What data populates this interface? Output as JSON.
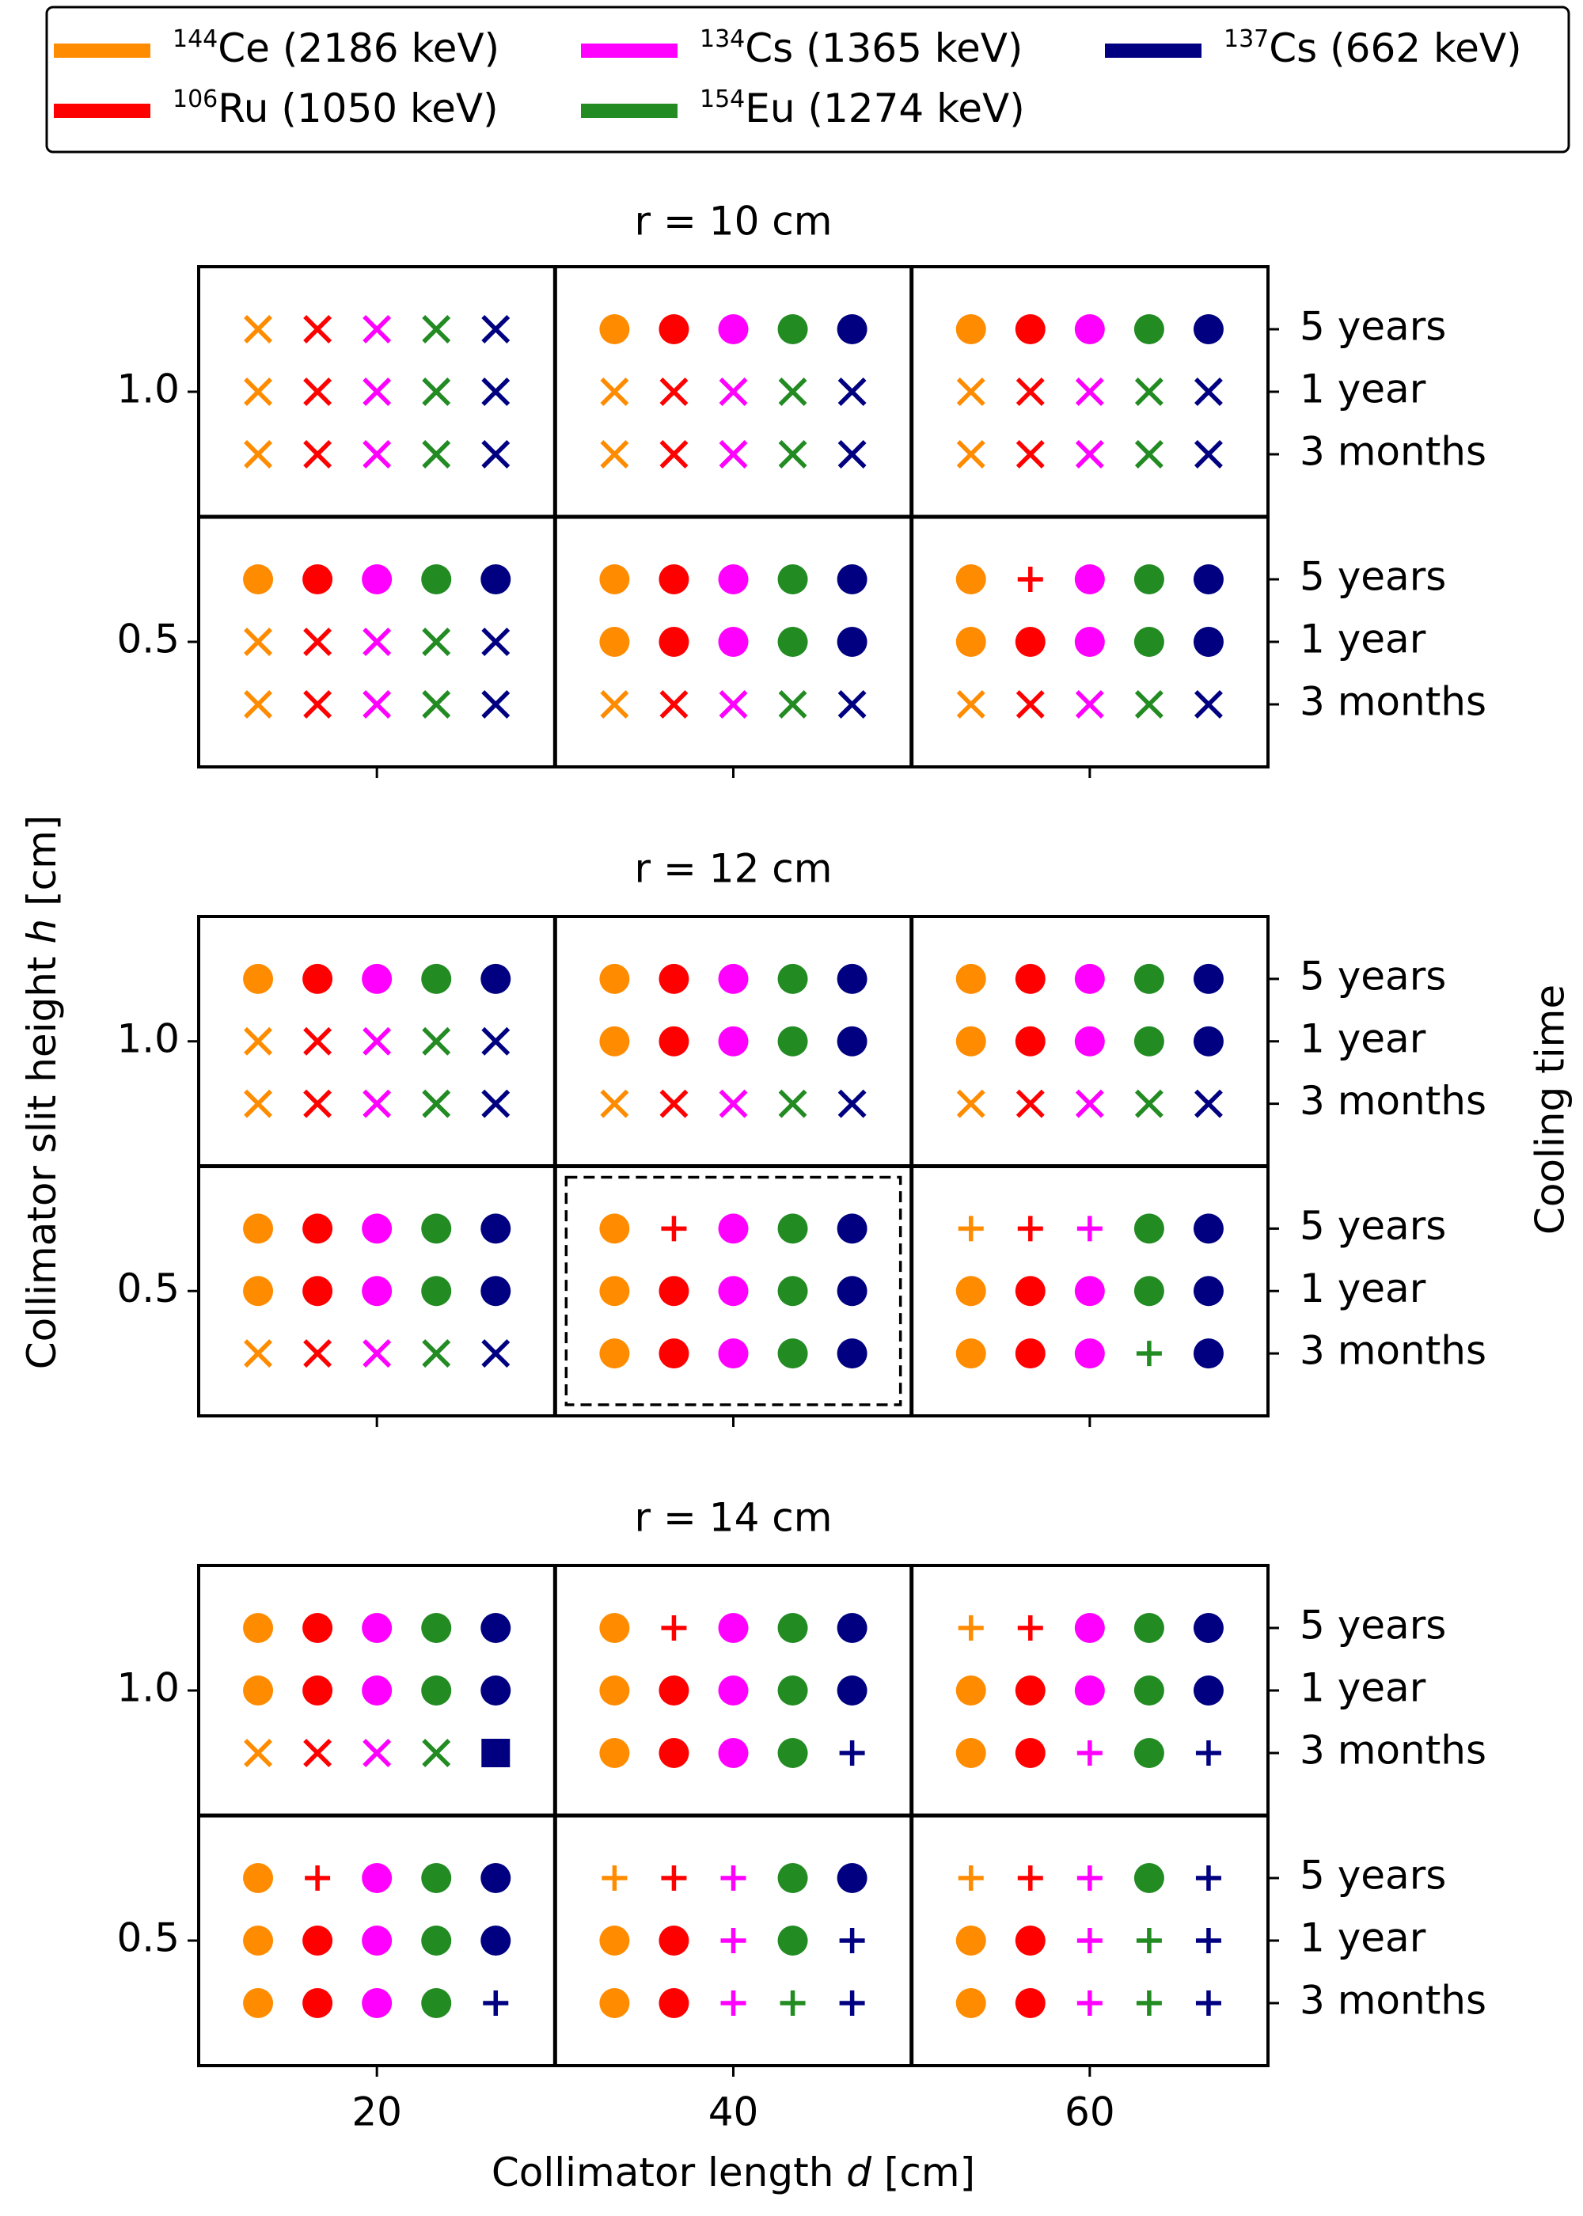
{
  "chart_data": {
    "type": "marker-grid",
    "series": [
      {
        "mass": "144",
        "name": "Ce (2186 keV)",
        "color": "#ff8c00"
      },
      {
        "mass": "106",
        "name": "Ru (1050 keV)",
        "color": "#ff0000"
      },
      {
        "mass": "134",
        "name": "Cs (1365 keV)",
        "color": "#ff00ff"
      },
      {
        "mass": "154",
        "name": "Eu (1274 keV)",
        "color": "#228b22"
      },
      {
        "mass": "137",
        "name": "Cs (662 keV)",
        "color": "#000080"
      }
    ],
    "xlabel": [
      "Collimator length ",
      "d",
      " [cm]"
    ],
    "ylabel": [
      "Collimator slit height ",
      "h",
      " [cm]"
    ],
    "y2label": "Cooling time",
    "cooling_times": [
      "5 years",
      "1 year",
      "3 months"
    ],
    "xlim": [
      10,
      70
    ],
    "xticks": [
      20,
      40,
      60
    ],
    "ylim": [
      0.25,
      1.25
    ],
    "yticks": [
      {
        "value": 1,
        "label": "1.0"
      },
      {
        "value": 0.5,
        "label": "0.5"
      }
    ],
    "panels": [
      {
        "title": "r = 10 cm",
        "markers": [
          [
            [
              "xxxxx",
              "xxxxx",
              "xxxxx"
            ],
            [
              "ooooo",
              "xxxxx",
              "xxxxx"
            ],
            [
              "ooooo",
              "xxxxx",
              "xxxxx"
            ]
          ],
          [
            [
              "ooooo",
              "xxxxx",
              "xxxxx"
            ],
            [
              "ooooo",
              "ooooo",
              "xxxxx"
            ],
            [
              "o+ooo",
              "ooooo",
              "xxxxx"
            ]
          ]
        ]
      },
      {
        "title": "r = 12 cm",
        "markers": [
          [
            [
              "ooooo",
              "xxxxx",
              "xxxxx"
            ],
            [
              "ooooo",
              "ooooo",
              "xxxxx"
            ],
            [
              "ooooo",
              "ooooo",
              "xxxxx"
            ]
          ],
          [
            [
              "ooooo",
              "ooooo",
              "xxxxx"
            ],
            [
              "o+ooo",
              "ooooo",
              "ooooo"
            ],
            [
              "+++oo",
              "ooooo",
              "ooo+o"
            ]
          ]
        ],
        "highlight": {
          "d": 40,
          "h": 0.5
        }
      },
      {
        "title": "r = 14 cm",
        "markers": [
          [
            [
              "ooooo",
              "ooooo",
              "xxxxs"
            ],
            [
              "o+ooo",
              "ooooo",
              "oooo+"
            ],
            [
              "++ooo",
              "ooooo",
              "oo+o+"
            ]
          ],
          [
            [
              "o+ooo",
              "ooooo",
              "oooo+"
            ],
            [
              "+++oo",
              "oo+o+",
              "oo+++"
            ],
            [
              "+++o+",
              "oo+++",
              "oo+++"
            ]
          ]
        ]
      }
    ]
  }
}
